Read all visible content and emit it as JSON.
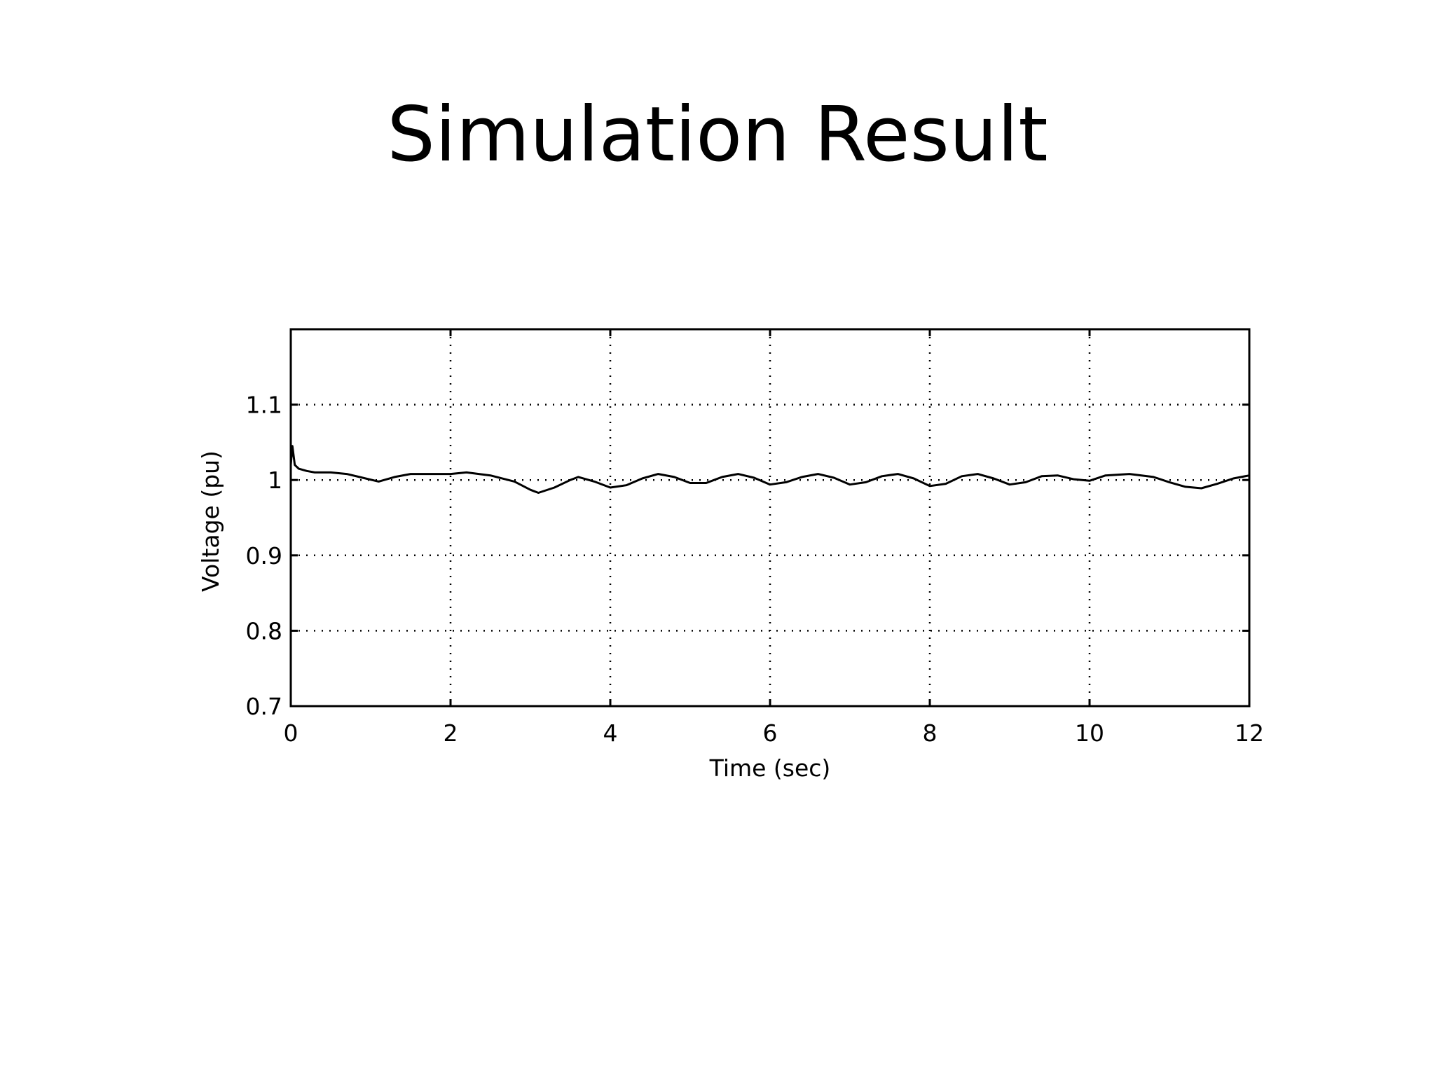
{
  "slide": {
    "title": "Simulation Result"
  },
  "chart_data": {
    "type": "line",
    "title": "",
    "xlabel": "Time (sec)",
    "ylabel": "Voltage (pu)",
    "xlim": [
      0,
      12
    ],
    "ylim": [
      0.7,
      1.2
    ],
    "xticks": [
      0,
      2,
      4,
      6,
      8,
      10,
      12
    ],
    "yticks": [
      0.7,
      0.8,
      0.9,
      1.0,
      1.1
    ],
    "ytick_labels": [
      "0.7",
      "0.8",
      "0.9",
      "1",
      "1.1"
    ],
    "grid": true,
    "line_color": "#000000",
    "series": [
      {
        "x": [
          0,
          0.02,
          0.05,
          0.1,
          0.2,
          0.3,
          0.5,
          0.7,
          0.9,
          1.1,
          1.3,
          1.5,
          1.8,
          2.0,
          2.2,
          2.5,
          2.8,
          3.0,
          3.1,
          3.3,
          3.5,
          3.6,
          3.8,
          4.0,
          4.2,
          4.4,
          4.6,
          4.8,
          5.0,
          5.2,
          5.4,
          5.6,
          5.8,
          6.0,
          6.2,
          6.4,
          6.6,
          6.8,
          7.0,
          7.2,
          7.4,
          7.6,
          7.8,
          8.0,
          8.2,
          8.4,
          8.6,
          8.8,
          9.0,
          9.2,
          9.4,
          9.6,
          9.8,
          10.0,
          10.2,
          10.5,
          10.8,
          11.0,
          11.2,
          11.4,
          11.6,
          11.8,
          12.0
        ],
        "y": [
          1.02,
          1.045,
          1.02,
          1.015,
          1.012,
          1.01,
          1.01,
          1.008,
          1.003,
          0.998,
          1.004,
          1.008,
          1.008,
          1.008,
          1.01,
          1.006,
          0.998,
          0.987,
          0.983,
          0.99,
          1.0,
          1.004,
          0.998,
          0.99,
          0.993,
          1.002,
          1.008,
          1.004,
          0.996,
          0.996,
          1.004,
          1.008,
          1.003,
          0.994,
          0.997,
          1.004,
          1.008,
          1.003,
          0.994,
          0.997,
          1.005,
          1.008,
          1.002,
          0.992,
          0.995,
          1.005,
          1.008,
          1.002,
          0.994,
          0.997,
          1.005,
          1.006,
          1.001,
          0.999,
          1.006,
          1.008,
          1.004,
          0.997,
          0.991,
          0.989,
          0.995,
          1.002,
          1.006
        ]
      }
    ]
  }
}
